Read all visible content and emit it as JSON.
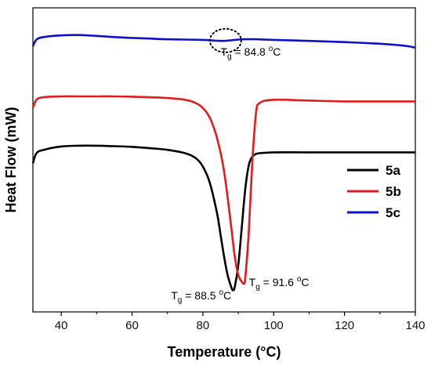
{
  "chart_data": {
    "type": "line",
    "title": "",
    "xlabel": "Temperature (°C)",
    "ylabel": "Heat Flow (mW)",
    "xlim": [
      32,
      140
    ],
    "xticks": [
      40,
      60,
      80,
      100,
      120,
      140
    ],
    "y_tick_labels": false,
    "legend_position": "right",
    "grid": false,
    "series": [
      {
        "name": "5a",
        "color": "#000000",
        "x": [
          32,
          33,
          35,
          40,
          45,
          50,
          55,
          60,
          65,
          70,
          75,
          78,
          80,
          82,
          84,
          85,
          86,
          87,
          88,
          88.5,
          89,
          90,
          91,
          92,
          93,
          94,
          95,
          96,
          100,
          110,
          120,
          130,
          140
        ],
        "y": [
          7.3,
          7.9,
          8.1,
          8.3,
          8.35,
          8.35,
          8.32,
          8.28,
          8.2,
          8.1,
          7.9,
          7.6,
          7.1,
          6.1,
          4.3,
          3.0,
          1.7,
          0.6,
          -0.1,
          -0.3,
          -0.1,
          1.2,
          3.5,
          5.8,
          7.2,
          7.7,
          7.85,
          7.9,
          7.95,
          7.95,
          7.95,
          7.95,
          7.95
        ]
      },
      {
        "name": "5b",
        "color": "#e41a1c",
        "x": [
          32,
          33,
          35,
          40,
          45,
          50,
          55,
          60,
          65,
          70,
          75,
          78,
          80,
          82,
          84,
          86,
          88,
          89,
          90,
          91,
          91.6,
          92,
          93,
          94,
          95,
          96,
          100,
          110,
          120,
          130,
          140
        ],
        "y": [
          10.6,
          11.1,
          11.25,
          11.3,
          11.3,
          11.3,
          11.3,
          11.28,
          11.25,
          11.2,
          11.1,
          10.9,
          10.6,
          10.0,
          8.8,
          6.8,
          3.5,
          1.7,
          0.6,
          0.2,
          0.1,
          0.5,
          3.3,
          7.5,
          10.3,
          10.9,
          11.1,
          11.05,
          11.0,
          11.0,
          11.0
        ]
      },
      {
        "name": "5c",
        "color": "#1010cc",
        "x": [
          32,
          33,
          35,
          40,
          45,
          50,
          55,
          60,
          65,
          70,
          75,
          80,
          82,
          84,
          86,
          88,
          90,
          92,
          95,
          100,
          110,
          120,
          130,
          135,
          138,
          140
        ],
        "y": [
          14.3,
          14.7,
          14.85,
          14.95,
          14.97,
          14.92,
          14.85,
          14.8,
          14.76,
          14.72,
          14.7,
          14.68,
          14.66,
          14.63,
          14.62,
          14.66,
          14.7,
          14.72,
          14.72,
          14.68,
          14.62,
          14.55,
          14.45,
          14.37,
          14.3,
          14.22
        ]
      }
    ],
    "annotations": [
      {
        "text_main": "T",
        "text_sub": "g",
        "text_value": " = 84.8 ",
        "text_sup": "o",
        "text_unit": "C",
        "x": 85,
        "y": 13.75,
        "anchor": "start"
      },
      {
        "text_main": "T",
        "text_sub": "g",
        "text_value": " = 88.5 ",
        "text_sup": "o",
        "text_unit": "C",
        "x": 71,
        "y": -0.85,
        "anchor": "start"
      },
      {
        "text_main": "T",
        "text_sub": "g",
        "text_value": " = 91.6 ",
        "text_sup": "o",
        "text_unit": "C",
        "x": 93,
        "y": -0.05,
        "anchor": "start"
      }
    ],
    "marker_circle": {
      "x": 86.4,
      "y": 14.64,
      "style": "dotted"
    }
  }
}
